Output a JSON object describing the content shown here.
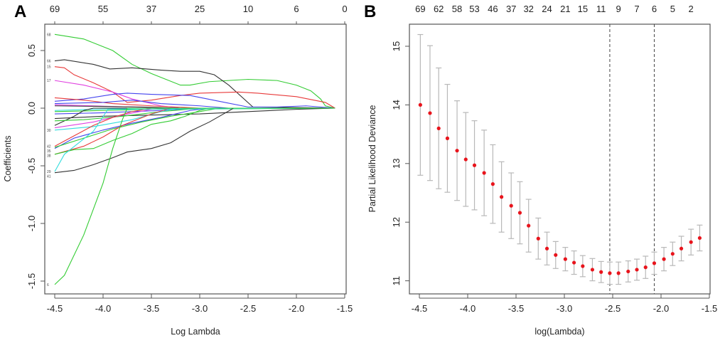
{
  "chart_data": [
    {
      "panel": "A",
      "type": "line",
      "xlabel": "Log Lambda",
      "ylabel": "Coefficients",
      "xlim": [
        -4.6,
        -1.5
      ],
      "ylim": [
        -1.6,
        0.72
      ],
      "xticks": [
        -4.5,
        -4.0,
        -3.5,
        -3.0,
        -2.5,
        -2.0,
        -1.5
      ],
      "xtick_labels": [
        "-4.5",
        "-4.0",
        "-3.5",
        "-3.0",
        "-2.5",
        "-2.0",
        "-1.5"
      ],
      "yticks": [
        -1.5,
        -1.0,
        -0.5,
        0.0,
        0.5
      ],
      "ytick_labels": [
        "-1.5",
        "-1.0",
        "-0.5",
        "0.0",
        "0.5"
      ],
      "top_ticks": [
        -4.5,
        -4.0,
        -3.5,
        -3.0,
        -2.5,
        -2.0,
        -1.5
      ],
      "top_tick_labels": [
        "69",
        "55",
        "37",
        "25",
        "10",
        "6",
        "0"
      ],
      "grid": false,
      "series": [
        {
          "label": "68",
          "color": "#33cc33",
          "x": [
            -4.5,
            -4.2,
            -3.9,
            -3.7,
            -3.5,
            -3.2,
            -3.1,
            -2.9,
            -2.5,
            -2.2,
            -2.0,
            -1.85,
            -1.75,
            -1.7,
            -1.6
          ],
          "y": [
            0.64,
            0.6,
            0.5,
            0.38,
            0.3,
            0.2,
            0.2,
            0.23,
            0.25,
            0.24,
            0.2,
            0.15,
            0.08,
            0.02,
            0
          ]
        },
        {
          "label": "66",
          "color": "#333333",
          "x": [
            -4.5,
            -4.4,
            -4.1,
            -3.93,
            -3.7,
            -3.4,
            -3.2,
            -3.0,
            -2.85,
            -2.7,
            -2.45,
            -1.6
          ],
          "y": [
            0.41,
            0.42,
            0.38,
            0.34,
            0.35,
            0.33,
            0.32,
            0.32,
            0.29,
            0.2,
            0.01,
            0
          ]
        },
        {
          "label": "15",
          "color": "#e83a3a",
          "x": [
            -4.5,
            -4.4,
            -4.3,
            -4.1,
            -3.9,
            -3.75,
            -3.5,
            -3.2,
            -3.0,
            -2.6,
            -2.4,
            -2.0,
            -1.7,
            -1.6
          ],
          "y": [
            0.36,
            0.35,
            0.29,
            0.22,
            0.14,
            0.05,
            0.07,
            0.11,
            0.13,
            0.14,
            0.13,
            0.1,
            0.05,
            0
          ]
        },
        {
          "label": "17",
          "color": "#e040e0",
          "x": [
            -4.5,
            -4.2,
            -3.9,
            -3.7,
            -3.4,
            -3.2,
            -1.6
          ],
          "y": [
            0.24,
            0.2,
            0.14,
            0.08,
            0.02,
            0,
            0
          ]
        },
        {
          "label": "",
          "color": "#4444ee",
          "x": [
            -4.5,
            -4.2,
            -3.9,
            -3.75,
            -3.5,
            -3.1,
            -2.8,
            -2.5,
            -2.2,
            -1.9,
            -1.75,
            -1.6
          ],
          "y": [
            0.06,
            0.08,
            0.12,
            0.13,
            0.12,
            0.11,
            0.06,
            0.01,
            0.01,
            0.02,
            0.01,
            0
          ]
        },
        {
          "label": "",
          "color": "#e83a3a",
          "x": [
            -4.5,
            -4.2,
            -3.9,
            -3.5,
            -3.0,
            -1.6
          ],
          "y": [
            0.09,
            0.07,
            0.04,
            0.02,
            0,
            0
          ]
        },
        {
          "label": "",
          "color": "#4444ee",
          "x": [
            -4.5,
            -4.0,
            -3.7,
            -3.4,
            -3.0,
            -2.7,
            -1.6
          ],
          "y": [
            0.04,
            0.05,
            0.07,
            0.04,
            0.02,
            0,
            0
          ]
        },
        {
          "label": "",
          "color": "#e040e0",
          "x": [
            -4.5,
            -4.1,
            -3.7,
            -3.3,
            -1.6
          ],
          "y": [
            0.03,
            0.02,
            0.01,
            0,
            0
          ]
        },
        {
          "label": "",
          "color": "#333333",
          "x": [
            -4.5,
            -4.0,
            -3.6,
            -3.2,
            -1.6
          ],
          "y": [
            0.02,
            0.015,
            0.01,
            0,
            0
          ]
        },
        {
          "label": "",
          "color": "#33dddd",
          "x": [
            -4.5,
            -4.1,
            -3.6,
            -1.6
          ],
          "y": [
            -0.02,
            -0.01,
            0,
            0
          ]
        },
        {
          "label": "",
          "color": "#33cc33",
          "x": [
            -4.5,
            -4.0,
            -3.5,
            -1.6
          ],
          "y": [
            -0.03,
            -0.02,
            -0.01,
            0
          ]
        },
        {
          "label": "",
          "color": "#4444ee",
          "x": [
            -4.5,
            -4.0,
            -3.4,
            -3.0,
            -1.6
          ],
          "y": [
            -0.05,
            -0.04,
            -0.02,
            0,
            0
          ]
        },
        {
          "label": "",
          "color": "#333333",
          "x": [
            -4.5,
            -4.0,
            -3.5,
            -3.0,
            -2.5,
            -2.0,
            -1.6
          ],
          "y": [
            -0.09,
            -0.07,
            -0.06,
            -0.05,
            -0.03,
            -0.01,
            0
          ]
        },
        {
          "label": "",
          "color": "#333333",
          "x": [
            -4.5,
            -4.3,
            -4.2,
            -4.1,
            -1.6
          ],
          "y": [
            -0.15,
            -0.07,
            -0.02,
            0,
            0
          ]
        },
        {
          "label": "",
          "color": "#33cc33",
          "x": [
            -4.5,
            -4.2,
            -3.8,
            -3.4,
            -3.0,
            -1.6
          ],
          "y": [
            -0.11,
            -0.1,
            -0.07,
            -0.03,
            0,
            0
          ]
        },
        {
          "label": "",
          "color": "#e040e0",
          "x": [
            -4.5,
            -4.1,
            -3.8,
            -3.5,
            -3.3,
            -1.6
          ],
          "y": [
            -0.17,
            -0.12,
            -0.06,
            -0.01,
            0,
            0
          ]
        },
        {
          "label": "30",
          "color": "#33dddd",
          "x": [
            -4.5,
            -4.1,
            -3.7,
            -3.4,
            -3.2,
            -1.6
          ],
          "y": [
            -0.19,
            -0.16,
            -0.1,
            -0.03,
            0,
            0
          ]
        },
        {
          "label": "42",
          "color": "#e83a3a",
          "x": [
            -4.5,
            -4.3,
            -4.1,
            -3.9,
            -3.7,
            -3.5,
            -1.6
          ],
          "y": [
            -0.33,
            -0.24,
            -0.15,
            -0.08,
            -0.03,
            0,
            0
          ]
        },
        {
          "label": "35",
          "color": "#4444ee",
          "x": [
            -4.5,
            -4.3,
            -4.0,
            -3.7,
            -3.4,
            -3.1,
            -2.9,
            -1.6
          ],
          "y": [
            -0.35,
            -0.26,
            -0.19,
            -0.13,
            -0.08,
            -0.02,
            0,
            0
          ]
        },
        {
          "label": "",
          "color": "#33cc33",
          "x": [
            -4.5,
            -4.2,
            -3.9,
            -3.6,
            -3.3,
            -3.0,
            -2.8,
            -1.6
          ],
          "y": [
            -0.34,
            -0.26,
            -0.18,
            -0.12,
            -0.07,
            -0.03,
            0,
            0
          ]
        },
        {
          "label": "38",
          "color": "#e83a3a",
          "x": [
            -4.5,
            -4.2,
            -4.0,
            -3.8,
            -3.5,
            -3.3,
            -1.6
          ],
          "y": [
            -0.4,
            -0.33,
            -0.25,
            -0.15,
            -0.05,
            0,
            0
          ]
        },
        {
          "label": "",
          "color": "#33cc33",
          "x": [
            -4.5,
            -4.3,
            -4.1,
            -3.9,
            -3.7,
            -3.5,
            -3.3,
            -3.15,
            -3.0,
            -2.9,
            -1.6
          ],
          "y": [
            -0.4,
            -0.36,
            -0.35,
            -0.28,
            -0.22,
            -0.14,
            -0.11,
            -0.07,
            -0.02,
            0,
            0
          ]
        },
        {
          "label": "29",
          "color": "#33dddd",
          "x": [
            -4.5,
            -4.4,
            -4.1,
            -3.95,
            -1.6
          ],
          "y": [
            -0.55,
            -0.4,
            -0.2,
            -0.01,
            0
          ]
        },
        {
          "label": "41",
          "color": "#333333",
          "x": [
            -4.5,
            -4.3,
            -4.1,
            -3.9,
            -3.75,
            -3.5,
            -3.3,
            -3.1,
            -2.9,
            -2.65,
            -1.6
          ],
          "y": [
            -0.56,
            -0.54,
            -0.49,
            -0.43,
            -0.38,
            -0.35,
            -0.3,
            -0.2,
            -0.12,
            0,
            0
          ]
        },
        {
          "label": "6",
          "color": "#33cc33",
          "x": [
            -4.5,
            -4.4,
            -4.2,
            -4.0,
            -3.9,
            -3.8,
            -3.75,
            -1.6
          ],
          "y": [
            -1.53,
            -1.45,
            -1.1,
            -0.65,
            -0.35,
            -0.1,
            0,
            0
          ]
        }
      ]
    },
    {
      "panel": "B",
      "type": "scatter",
      "xlabel": "log(Lambda)",
      "ylabel": "Partial Likelihood Deviance",
      "xlim": [
        -4.6,
        -1.5
      ],
      "ylim": [
        10.8,
        15.3
      ],
      "xticks": [
        -4.5,
        -4.0,
        -3.5,
        -3.0,
        -2.5,
        -2.0,
        -1.5
      ],
      "xtick_labels": [
        "-4.5",
        "-4.0",
        "-3.5",
        "-3.0",
        "-2.5",
        "-2.0",
        "-1.5"
      ],
      "yticks": [
        11,
        12,
        13,
        14,
        15
      ],
      "ytick_labels": [
        "11",
        "12",
        "13",
        "14",
        "15"
      ],
      "top_tick_labels": [
        "69",
        "62",
        "58",
        "53",
        "46",
        "37",
        "32",
        "24",
        "21",
        "15",
        "11",
        "9",
        "7",
        "6",
        "5",
        "2"
      ],
      "grid": false,
      "point_color": "#e8141c",
      "errorbar_color": "#b8b8b8",
      "x": [
        -4.49,
        -4.39,
        -4.3,
        -4.21,
        -4.11,
        -4.02,
        -3.93,
        -3.83,
        -3.74,
        -3.65,
        -3.55,
        -3.46,
        -3.37,
        -3.27,
        -3.18,
        -3.09,
        -2.99,
        -2.9,
        -2.81,
        -2.71,
        -2.62,
        -2.53,
        -2.44,
        -2.34,
        -2.25,
        -2.16,
        -2.07,
        -1.97,
        -1.88,
        -1.79,
        -1.69,
        -1.6
      ],
      "mean": [
        14.0,
        13.86,
        13.6,
        13.43,
        13.22,
        13.07,
        12.97,
        12.84,
        12.65,
        12.43,
        12.28,
        12.16,
        11.94,
        11.72,
        11.55,
        11.44,
        11.37,
        11.31,
        11.25,
        11.19,
        11.15,
        11.13,
        11.13,
        11.16,
        11.19,
        11.23,
        11.3,
        11.37,
        11.46,
        11.55,
        11.66,
        11.73
      ],
      "upper": [
        15.2,
        15.01,
        14.63,
        14.35,
        14.07,
        13.87,
        13.73,
        13.57,
        13.32,
        13.03,
        12.84,
        12.69,
        12.39,
        12.07,
        11.83,
        11.67,
        11.57,
        11.51,
        11.43,
        11.38,
        11.33,
        11.32,
        11.32,
        11.34,
        11.37,
        11.42,
        11.49,
        11.57,
        11.66,
        11.76,
        11.88,
        11.95
      ],
      "lower": [
        12.8,
        12.71,
        12.57,
        12.51,
        12.37,
        12.27,
        12.21,
        12.11,
        11.98,
        11.83,
        11.72,
        11.63,
        11.49,
        11.37,
        11.27,
        11.21,
        11.17,
        11.11,
        11.07,
        11.0,
        10.97,
        10.94,
        10.94,
        10.98,
        11.01,
        11.04,
        11.11,
        11.17,
        11.26,
        11.34,
        11.44,
        11.51
      ],
      "vlines": [
        -2.53,
        -2.07
      ]
    }
  ]
}
